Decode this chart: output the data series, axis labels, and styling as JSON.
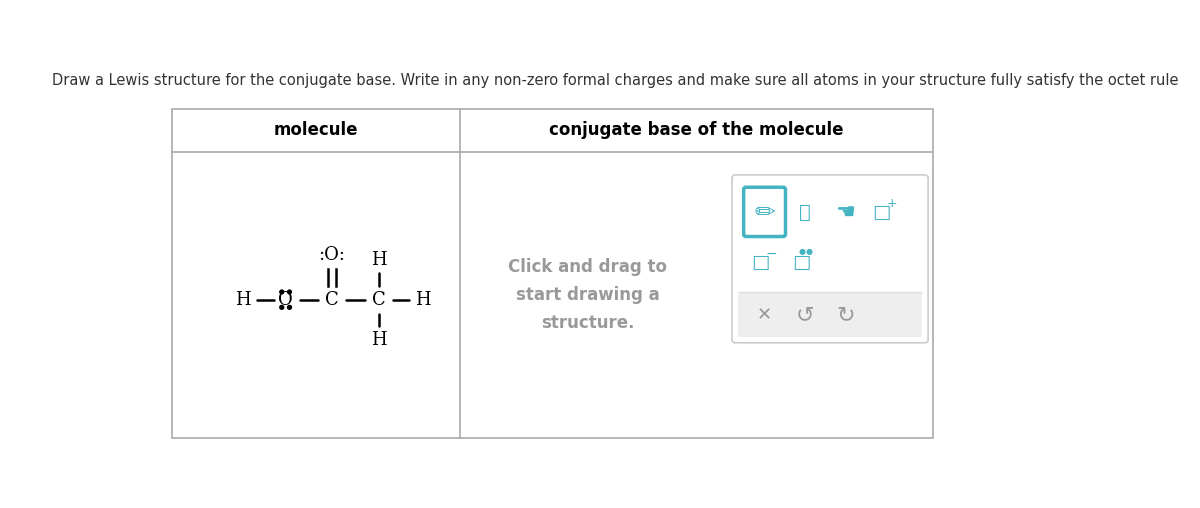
{
  "title_text": "Draw a Lewis structure for the conjugate base. Write in any non-zero formal charges and make sure all atoms in your structure fully satisfy the octet rule",
  "title_fontsize": 10.5,
  "title_color": "#333333",
  "bg_color": "#ffffff",
  "header_left": "molecule",
  "header_right": "conjugate base of the molecule",
  "header_fontsize": 12,
  "click_text": "Click and drag to\nstart drawing a\nstructure.",
  "click_fontsize": 12,
  "click_color": "#999999",
  "icon_color": "#44b3c2",
  "icon_dark": "#44b3c2",
  "action_color": "#999999"
}
